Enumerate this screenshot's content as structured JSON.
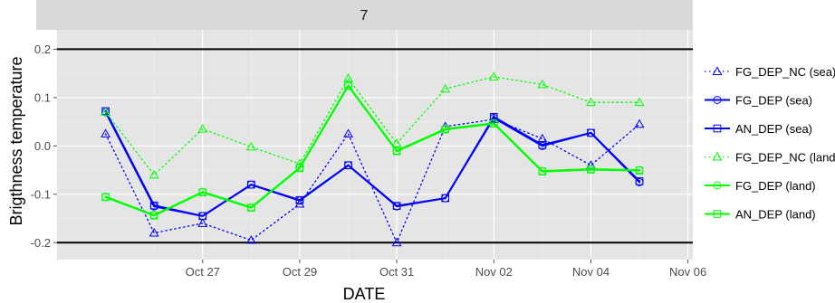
{
  "chart_data": {
    "type": "line",
    "title": "",
    "facet_label": "7",
    "xlabel": "DATE",
    "ylabel": "Brigthness temperature",
    "x_dates": [
      "2015-10-25",
      "2015-10-26",
      "2015-10-27",
      "2015-10-28",
      "2015-10-29",
      "2015-10-30",
      "2015-10-31",
      "2015-11-01",
      "2015-11-02",
      "2015-11-03",
      "2015-11-04",
      "2015-11-05",
      "2015-11-06"
    ],
    "x_tick_labels": [
      "Oct 27",
      "Oct 29",
      "Oct 31",
      "Nov 02",
      "Nov 04",
      "Nov 06"
    ],
    "x_tick_dates": [
      "2015-10-27",
      "2015-10-29",
      "2015-10-31",
      "2015-11-02",
      "2015-11-04",
      "2015-11-06"
    ],
    "y_ticks": [
      0.2,
      0.1,
      0.0,
      -0.1,
      -0.2
    ],
    "y_tick_labels": [
      "0.2",
      "0.1",
      "0.0",
      "-0.1",
      "-0.2"
    ],
    "reference_lines": [
      0.2,
      -0.2
    ],
    "grid": true,
    "legend_position": "right",
    "series": [
      {
        "name": "FG_DEP_NC (sea)",
        "color": "#0000ff",
        "dash": "dotted",
        "marker": "triangle",
        "dates": [
          "2015-10-25",
          "2015-10-26",
          "2015-10-27",
          "2015-10-28",
          "2015-10-29",
          "2015-10-30",
          "2015-10-31",
          "2015-11-01",
          "2015-11-02",
          "2015-11-03",
          "2015-11-04",
          "2015-11-05",
          "2015-11-06"
        ],
        "values": [
          0.025,
          -0.18,
          -0.16,
          -0.195,
          -0.12,
          0.025,
          -0.2,
          0.04,
          0.055,
          0.015,
          -0.04,
          0.045,
          null
        ]
      },
      {
        "name": "FG_DEP (sea)",
        "color": "#0000ff",
        "dash": "solid",
        "marker": "circle",
        "dates": [
          "2015-10-25",
          "2015-10-26",
          "2015-10-27",
          "2015-10-28",
          "2015-10-29",
          "2015-10-30",
          "2015-10-31",
          "2015-11-01",
          "2015-11-02",
          "2015-11-03",
          "2015-11-04",
          "2015-11-05",
          "2015-11-06"
        ],
        "values": [
          0.07,
          -0.125,
          -0.145,
          -0.08,
          -0.113,
          -0.04,
          -0.125,
          -0.108,
          0.058,
          0.0,
          0.027,
          -0.075,
          null
        ]
      },
      {
        "name": "AN_DEP (sea)",
        "color": "#0000ff",
        "dash": "solid",
        "marker": "square",
        "dates": [
          "2015-10-25",
          "2015-10-26",
          "2015-10-27",
          "2015-10-28",
          "2015-10-29",
          "2015-10-30",
          "2015-10-31",
          "2015-11-01",
          "2015-11-02",
          "2015-11-03",
          "2015-11-04",
          "2015-11-05",
          "2015-11-06"
        ],
        "values": [
          0.072,
          -0.123,
          -0.145,
          -0.08,
          -0.112,
          -0.04,
          -0.124,
          -0.108,
          0.06,
          0.002,
          0.027,
          -0.073,
          null
        ]
      },
      {
        "name": "FG_DEP_NC (land)",
        "color": "#00ff00",
        "dash": "dotted",
        "marker": "triangle",
        "dates": [
          "2015-10-25",
          "2015-10-26",
          "2015-10-27",
          "2015-10-28",
          "2015-10-29",
          "2015-10-30",
          "2015-10-31",
          "2015-11-01",
          "2015-11-02",
          "2015-11-03",
          "2015-11-04",
          "2015-11-05",
          "2015-11-06"
        ],
        "values": [
          0.07,
          -0.06,
          0.035,
          -0.002,
          -0.037,
          0.14,
          0.005,
          0.118,
          0.143,
          0.127,
          0.09,
          0.09,
          null
        ]
      },
      {
        "name": "FG_DEP (land)",
        "color": "#00ff00",
        "dash": "solid",
        "marker": "circle",
        "dates": [
          "2015-10-25",
          "2015-10-26",
          "2015-10-27",
          "2015-10-28",
          "2015-10-29",
          "2015-10-30",
          "2015-10-31",
          "2015-11-01",
          "2015-11-02",
          "2015-11-03",
          "2015-11-04",
          "2015-11-05",
          "2015-11-06"
        ],
        "values": [
          -0.105,
          -0.143,
          -0.095,
          -0.127,
          -0.045,
          0.125,
          -0.01,
          0.035,
          0.047,
          -0.052,
          -0.048,
          -0.05,
          null
        ]
      },
      {
        "name": "AN_DEP (land)",
        "color": "#00ff00",
        "dash": "solid",
        "marker": "square",
        "dates": [
          "2015-10-25",
          "2015-10-26",
          "2015-10-27",
          "2015-10-28",
          "2015-10-29",
          "2015-10-30",
          "2015-10-31",
          "2015-11-01",
          "2015-11-02",
          "2015-11-03",
          "2015-11-04",
          "2015-11-05",
          "2015-11-06"
        ],
        "values": [
          -0.106,
          -0.144,
          -0.096,
          -0.128,
          -0.046,
          0.124,
          -0.011,
          0.034,
          0.046,
          -0.053,
          -0.049,
          -0.051,
          null
        ]
      }
    ]
  }
}
